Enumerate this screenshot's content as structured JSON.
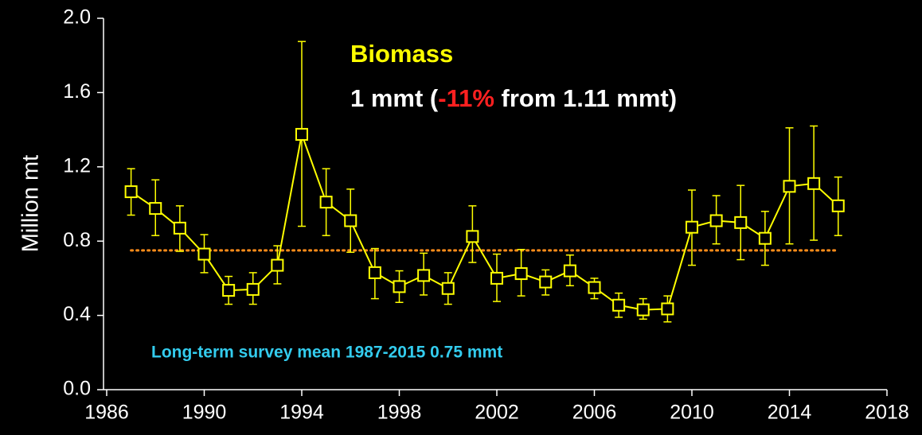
{
  "chart_data": {
    "type": "line",
    "ylabel": "Million mt",
    "annotations": {
      "title": "Biomass",
      "subtitle_parts": [
        "1 mmt (",
        "-11%",
        " from 1.11 mmt)"
      ],
      "mean_note": "Long-term survey mean 1987-2015  0.75 mmt"
    },
    "x": [
      1987,
      1988,
      1989,
      1990,
      1991,
      1992,
      1993,
      1994,
      1995,
      1996,
      1997,
      1998,
      1999,
      2000,
      2001,
      2002,
      2003,
      2004,
      2005,
      2006,
      2007,
      2008,
      2009,
      2010,
      2011,
      2012,
      2013,
      2014,
      2015,
      2016
    ],
    "series": [
      {
        "name": "Biomass",
        "color": "#ffff00",
        "values": [
          1.066,
          0.976,
          0.87,
          0.73,
          0.535,
          0.54,
          0.67,
          1.375,
          1.01,
          0.91,
          0.63,
          0.555,
          0.615,
          0.545,
          0.825,
          0.6,
          0.625,
          0.58,
          0.64,
          0.55,
          0.455,
          0.43,
          0.435,
          0.875,
          0.91,
          0.9,
          0.815,
          1.095,
          1.11,
          0.99
        ],
        "upper": [
          1.19,
          1.13,
          0.99,
          0.835,
          0.61,
          0.63,
          0.775,
          1.875,
          1.19,
          1.08,
          0.76,
          0.64,
          0.735,
          0.63,
          0.99,
          0.73,
          0.755,
          0.645,
          0.725,
          0.6,
          0.52,
          0.49,
          0.505,
          1.075,
          1.045,
          1.1,
          0.96,
          1.41,
          1.42,
          1.145
        ],
        "lower": [
          0.94,
          0.83,
          0.745,
          0.63,
          0.46,
          0.46,
          0.57,
          0.88,
          0.83,
          0.74,
          0.49,
          0.47,
          0.51,
          0.46,
          0.685,
          0.475,
          0.505,
          0.51,
          0.56,
          0.49,
          0.39,
          0.38,
          0.365,
          0.67,
          0.785,
          0.7,
          0.67,
          0.785,
          0.805,
          0.83
        ]
      }
    ],
    "mean_line": {
      "value": 0.75,
      "x": [
        1987,
        2016
      ],
      "color": "#ff8c1a"
    },
    "xlim": [
      1986,
      2018
    ],
    "xticks": [
      1986,
      1990,
      1994,
      1998,
      2002,
      2006,
      2010,
      2014,
      2018
    ],
    "ylim": [
      0,
      2
    ],
    "yticks": [
      {
        "value": 0,
        "label": "0.0"
      },
      0.4,
      0.8,
      1.2,
      1.6,
      {
        "value": 2,
        "label": "2.0"
      }
    ],
    "background": "#000000",
    "axis_color": "#ffffff"
  }
}
